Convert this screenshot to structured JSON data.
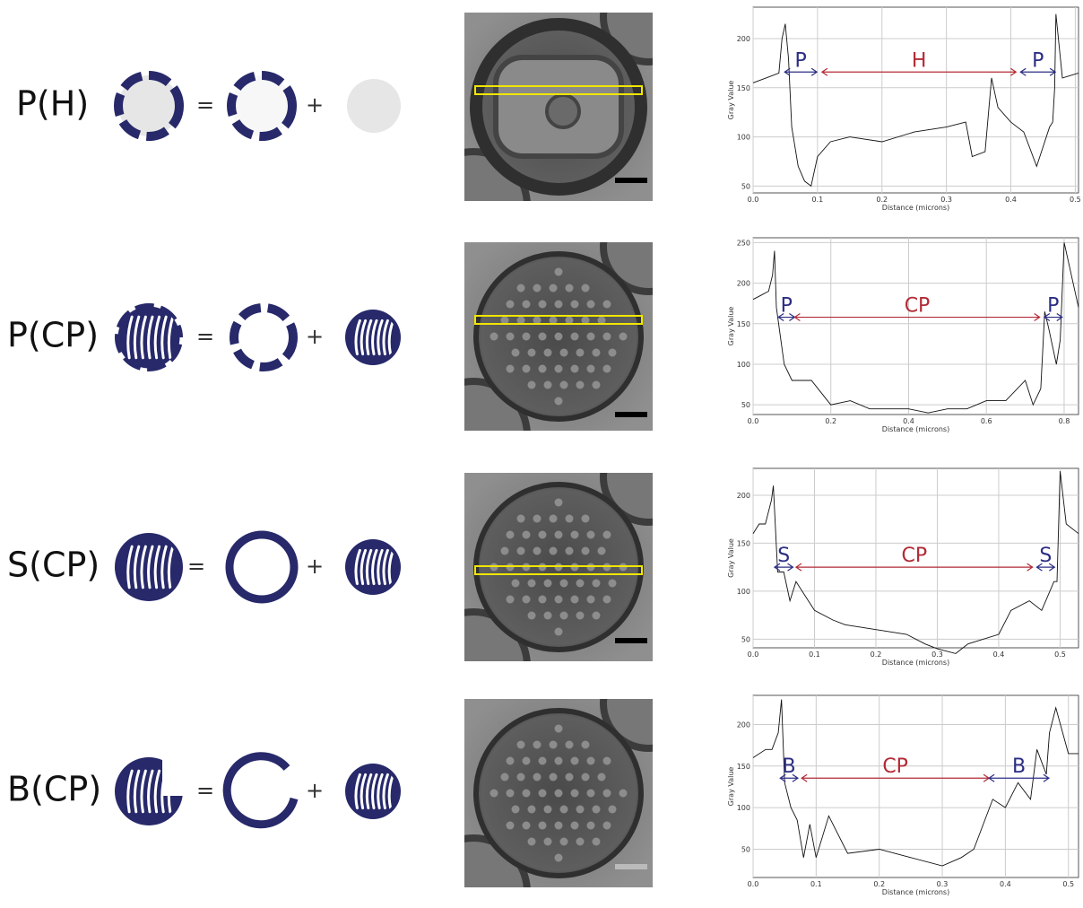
{
  "rows": [
    {
      "label": "P(H)",
      "equals": "=",
      "plus": "+",
      "plot": {
        "type": "line",
        "ylabel": "Gray Value",
        "xlabel": "Distance (microns)",
        "xlim": [
          0,
          0.505
        ],
        "xticks": [
          {
            "value": 0,
            "label": "0.0"
          },
          0.1,
          0.2,
          0.3,
          0.4,
          0.5
        ],
        "ylim": [
          43,
          232
        ],
        "yticks": [
          50,
          100,
          150,
          200
        ],
        "grid": true,
        "color": "#111",
        "x": [
          0,
          0.02,
          0.04,
          0.045,
          0.05,
          0.055,
          0.06,
          0.07,
          0.08,
          0.09,
          0.1,
          0.12,
          0.15,
          0.2,
          0.25,
          0.3,
          0.33,
          0.34,
          0.36,
          0.37,
          0.38,
          0.4,
          0.42,
          0.44,
          0.45,
          0.46,
          0.465,
          0.468,
          0.47,
          0.48,
          0.505
        ],
        "values": [
          155,
          160,
          165,
          200,
          215,
          180,
          110,
          70,
          55,
          50,
          80,
          95,
          100,
          95,
          105,
          110,
          115,
          80,
          85,
          160,
          130,
          115,
          105,
          70,
          90,
          110,
          115,
          150,
          225,
          160,
          165
        ],
        "annotations": [
          {
            "text": "P",
            "x0": 0.049,
            "x1": 0.099,
            "y": 166,
            "color": "#2b2d84"
          },
          {
            "text": "H",
            "x0": 0.107,
            "x1": 0.408,
            "y": 166,
            "color": "#b22a35"
          },
          {
            "text": "P",
            "x0": 0.415,
            "x1": 0.469,
            "y": 166,
            "color": "#2b2d84"
          }
        ]
      }
    },
    {
      "label": "P(CP)",
      "equals": "=",
      "plus": "+",
      "plot": {
        "type": "line",
        "ylabel": "Gray Value",
        "xlabel": "Distance (microns)",
        "xlim": [
          0,
          0.837
        ],
        "xticks": [
          {
            "value": 0,
            "label": "0.0"
          },
          0.2,
          0.4,
          0.6,
          0.8
        ],
        "ylim": [
          38,
          256
        ],
        "yticks": [
          50,
          100,
          150,
          200,
          250
        ],
        "grid": true,
        "color": "#111",
        "x": [
          0,
          0.02,
          0.04,
          0.05,
          0.055,
          0.06,
          0.08,
          0.1,
          0.15,
          0.2,
          0.25,
          0.3,
          0.35,
          0.4,
          0.45,
          0.5,
          0.55,
          0.6,
          0.65,
          0.7,
          0.72,
          0.74,
          0.75,
          0.76,
          0.78,
          0.79,
          0.8,
          0.837
        ],
        "values": [
          180,
          185,
          190,
          210,
          240,
          170,
          100,
          80,
          80,
          50,
          55,
          45,
          45,
          45,
          40,
          45,
          45,
          55,
          55,
          80,
          50,
          70,
          165,
          145,
          100,
          130,
          250,
          170
        ],
        "annotations": [
          {
            "text": "P",
            "x0": 0.065,
            "x1": 0.107,
            "y": 158,
            "color": "#2b2d84"
          },
          {
            "text": "CP",
            "x0": 0.107,
            "x1": 0.737,
            "y": 158,
            "color": "#b22a35"
          },
          {
            "text": "P",
            "x0": 0.749,
            "x1": 0.795,
            "y": 158,
            "color": "#2b2d84"
          }
        ]
      }
    },
    {
      "label": "S(CP)",
      "equals": "=",
      "plus": "+",
      "plot": {
        "type": "line",
        "ylabel": "Gray Value",
        "xlabel": "Distance (microns)",
        "xlim": [
          0,
          0.53
        ],
        "xticks": [
          {
            "value": 0,
            "label": "0.0"
          },
          0.1,
          0.2,
          0.3,
          0.4,
          0.5
        ],
        "ylim": [
          41,
          228
        ],
        "yticks": [
          50,
          100,
          150,
          200
        ],
        "grid": true,
        "color": "#111",
        "x": [
          0,
          0.01,
          0.02,
          0.03,
          0.033,
          0.04,
          0.05,
          0.06,
          0.07,
          0.1,
          0.13,
          0.15,
          0.2,
          0.25,
          0.28,
          0.3,
          0.33,
          0.35,
          0.4,
          0.42,
          0.45,
          0.47,
          0.49,
          0.495,
          0.5,
          0.51,
          0.53
        ],
        "values": [
          160,
          170,
          170,
          195,
          210,
          120,
          120,
          90,
          110,
          80,
          70,
          65,
          60,
          55,
          45,
          40,
          35,
          45,
          55,
          80,
          90,
          80,
          110,
          110,
          225,
          170,
          160
        ],
        "annotations": [
          {
            "text": "S",
            "x0": 0.035,
            "x1": 0.065,
            "y": 125,
            "color": "#2b2d84"
          },
          {
            "text": "CP",
            "x0": 0.07,
            "x1": 0.455,
            "y": 125,
            "color": "#b22a35"
          },
          {
            "text": "S",
            "x0": 0.462,
            "x1": 0.491,
            "y": 125,
            "color": "#2b2d84"
          }
        ]
      }
    },
    {
      "label": "B(CP)",
      "equals": "=",
      "plus": "+",
      "plot": {
        "type": "line",
        "ylabel": "Gray Value",
        "xlabel": "Distance (microns)",
        "xlim": [
          0,
          0.516
        ],
        "xticks": [
          {
            "value": 0,
            "label": "0.0"
          },
          0.1,
          0.2,
          0.3,
          0.4,
          0.5
        ],
        "ylim": [
          16,
          235
        ],
        "yticks": [
          50,
          100,
          150,
          200
        ],
        "grid": true,
        "color": "#111",
        "x": [
          0,
          0.02,
          0.03,
          0.04,
          0.045,
          0.05,
          0.06,
          0.07,
          0.08,
          0.09,
          0.1,
          0.12,
          0.15,
          0.2,
          0.25,
          0.3,
          0.33,
          0.35,
          0.38,
          0.4,
          0.42,
          0.44,
          0.45,
          0.46,
          0.465,
          0.47,
          0.48,
          0.5,
          0.516
        ],
        "values": [
          160,
          170,
          170,
          190,
          230,
          130,
          100,
          85,
          40,
          80,
          40,
          90,
          45,
          50,
          40,
          30,
          40,
          50,
          110,
          100,
          130,
          110,
          170,
          150,
          140,
          190,
          220,
          165,
          165
        ],
        "annotations": [
          {
            "text": "B",
            "x0": 0.043,
            "x1": 0.071,
            "y": 135.5,
            "color": "#2b2d84"
          },
          {
            "text": "CP",
            "x0": 0.077,
            "x1": 0.374,
            "y": 135.5,
            "color": "#b22a35"
          },
          {
            "text": "B",
            "x0": 0.374,
            "x1": 0.469,
            "y": 135.5,
            "color": "#2b2d84"
          }
        ]
      }
    }
  ]
}
